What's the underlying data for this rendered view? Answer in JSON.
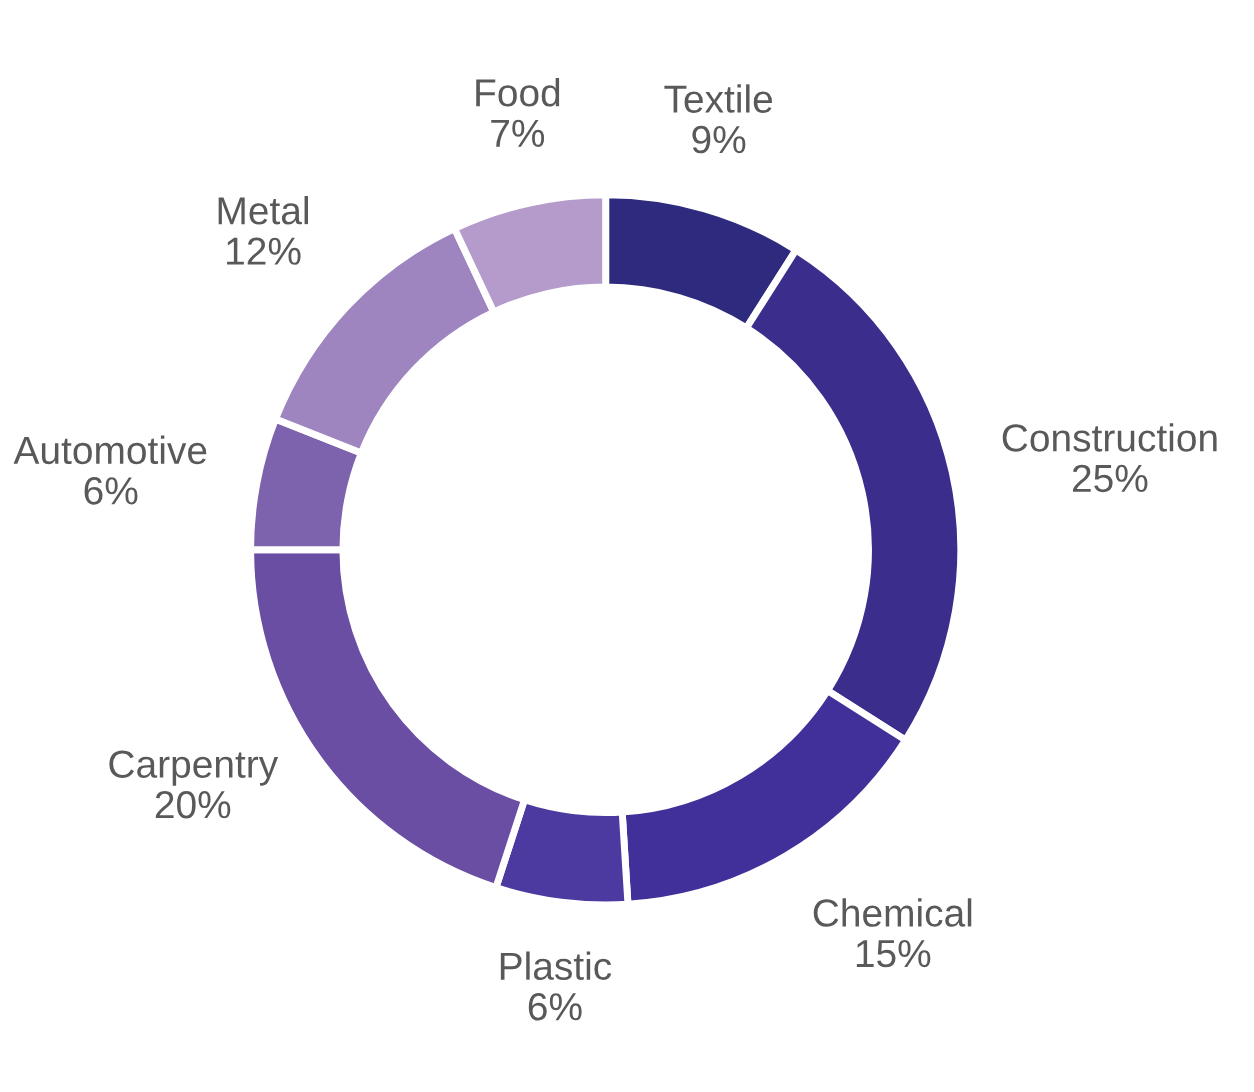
{
  "chart_data": {
    "type": "donut",
    "categories": [
      "Textile",
      "Construction",
      "Chemical",
      "Plastic",
      "Carpentry",
      "Automotive",
      "Metal",
      "Food"
    ],
    "values": [
      9,
      25,
      15,
      6,
      20,
      6,
      12,
      7
    ],
    "value_labels": [
      "9%",
      "25%",
      "15%",
      "6%",
      "20%",
      "6%",
      "12%",
      "7%"
    ],
    "colors": [
      "#2e2a7e",
      "#3a2d8c",
      "#42309a",
      "#4d3aa0",
      "#6a4ea3",
      "#7d63ae",
      "#9f85bf",
      "#b49bcb"
    ],
    "legend": false
  }
}
